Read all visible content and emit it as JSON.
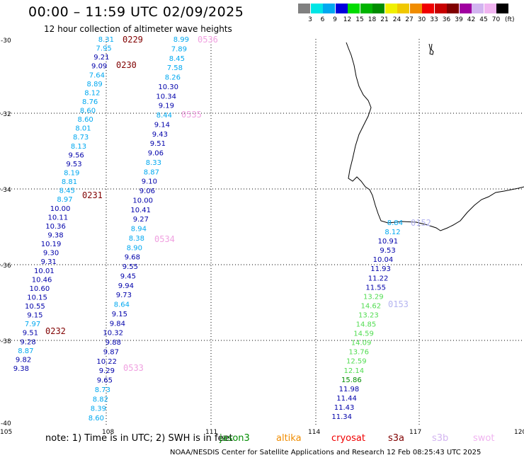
{
  "title": "00:00 – 11:59 UTC 02/09/2025",
  "subtitle": "12 hour collection of altimeter wave heights",
  "scale": {
    "unit": "(ft)",
    "bins": [
      {
        "label": "3",
        "color": "#808080"
      },
      {
        "label": "6",
        "color": "#00e5e5"
      },
      {
        "label": "9",
        "color": "#00a8f0"
      },
      {
        "label": "12",
        "color": "#0000dd"
      },
      {
        "label": "15",
        "color": "#00dc00"
      },
      {
        "label": "18",
        "color": "#00b400"
      },
      {
        "label": "21",
        "color": "#008c00"
      },
      {
        "label": "24",
        "color": "#f0f000"
      },
      {
        "label": "27",
        "color": "#f0c800"
      },
      {
        "label": "30",
        "color": "#f08c00"
      },
      {
        "label": "33",
        "color": "#f00000"
      },
      {
        "label": "36",
        "color": "#c80000"
      },
      {
        "label": "39",
        "color": "#800000"
      },
      {
        "label": "42",
        "color": "#a000a0"
      },
      {
        "label": "45",
        "color": "#d2b4f0"
      },
      {
        "label": "70",
        "color": "#f0b4f0"
      },
      {
        "label": "",
        "color": "#000000"
      }
    ]
  },
  "axes": {
    "lon_labels": [
      "105",
      "108",
      "111",
      "114",
      "117",
      "120"
    ],
    "lat_labels": [
      "-30",
      "-32",
      "-34",
      "-36",
      "-38",
      "-40"
    ]
  },
  "tracks": {
    "t0229": {
      "pass_label": "0229",
      "color": "#00a8f0",
      "values": [
        "8.31",
        "7.95",
        "9.21",
        "9.09",
        "7.64",
        "8.89",
        "8.12",
        "8.76",
        "8.60",
        "8.60",
        "8.01",
        "8.73",
        "8.13",
        "9.56",
        "9.53",
        "8.19",
        "8.81",
        "8.45",
        "8.97",
        "10.00",
        "10.11",
        "10.36",
        "9.38",
        "10.19",
        "9.30",
        "9.31",
        "10.01",
        "10.46",
        "10.60",
        "10.15",
        "10.55",
        "9.15",
        "7.97",
        "9.51",
        "9.28",
        "8.87",
        "9.82",
        "9.38"
      ]
    },
    "t0230": {
      "pass_label": "0230"
    },
    "t0231": {
      "pass_label": "0231"
    },
    "t0232": {
      "pass_label": "0232"
    },
    "t0536": {
      "pass_label": "0536",
      "values": [
        "8.99",
        "7.89",
        "8.45",
        "7.58",
        "8.26",
        "10.30",
        "10.34",
        "9.19",
        "8.44",
        "9.14",
        "9.43",
        "9.51",
        "9.06",
        "8.33",
        "8.87",
        "9.10",
        "9.06",
        "10.00",
        "10.41",
        "9.27",
        "8.94",
        "8.38",
        "8.90",
        "9.68",
        "9.55",
        "9.45",
        "9.94",
        "9.73",
        "8.64",
        "9.15",
        "9.84",
        "10.32",
        "9.88",
        "9.87",
        "10.22",
        "9.29",
        "9.65",
        "8.73",
        "8.82",
        "8.39",
        "8.60"
      ]
    },
    "t0535": {
      "pass_label": "0535"
    },
    "t0534": {
      "pass_label": "0534"
    },
    "t0533": {
      "pass_label": "0533"
    },
    "t0152": {
      "pass_label": "0152",
      "values": [
        "8.84",
        "8.12",
        "10.91",
        "9.53",
        "10.04",
        "11.93",
        "11.22",
        "11.55",
        "13.29",
        "14.62",
        "13.23",
        "14.85",
        "14.59",
        "14.09",
        "13.76",
        "12.59",
        "12.14",
        "15.86",
        "11.98",
        "11.44",
        "11.43",
        "11.34"
      ]
    },
    "t0153": {
      "pass_label": "0153"
    }
  },
  "note": "note: 1) Time is in UTC; 2) SWH is in feet",
  "legend": [
    {
      "label": "jason3",
      "color": "#008c00"
    },
    {
      "label": "altika",
      "color": "#f08c00"
    },
    {
      "label": "cryosat",
      "color": "#f00000"
    },
    {
      "label": "s3a",
      "color": "#800000"
    },
    {
      "label": "s3b",
      "color": "#d2b4f0"
    },
    {
      "label": "swot",
      "color": "#f0b4f0"
    }
  ],
  "footer": "NOAA/NESDIS Center for Satellite Applications and Research     12 Feb 08:25:43 UTC 2025"
}
